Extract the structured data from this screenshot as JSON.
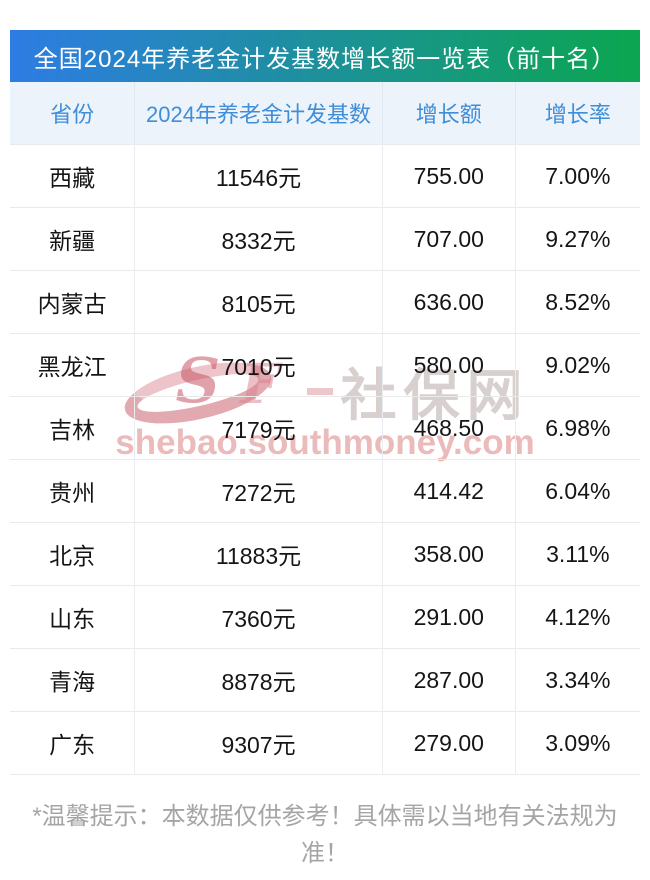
{
  "title": "全国2024年养老金计发基数增长额一览表（前十名）",
  "chart_data": {
    "type": "table",
    "title": "全国2024年养老金计发基数增长额一览表（前十名）",
    "columns": [
      "省份",
      "2024年养老金计发基数",
      "增长额",
      "增长率"
    ],
    "rows": [
      {
        "province": "西藏",
        "base": "11546元",
        "growth": "755.00",
        "rate": "7.00%"
      },
      {
        "province": "新疆",
        "base": "8332元",
        "growth": "707.00",
        "rate": "9.27%"
      },
      {
        "province": "内蒙古",
        "base": "8105元",
        "growth": "636.00",
        "rate": "8.52%"
      },
      {
        "province": "黑龙江",
        "base": "7010元",
        "growth": "580.00",
        "rate": "9.02%"
      },
      {
        "province": "吉林",
        "base": "7179元",
        "growth": "468.50",
        "rate": "6.98%"
      },
      {
        "province": "贵州",
        "base": "7272元",
        "growth": "414.42",
        "rate": "6.04%"
      },
      {
        "province": "北京",
        "base": "11883元",
        "growth": "358.00",
        "rate": "3.11%"
      },
      {
        "province": "山东",
        "base": "7360元",
        "growth": "291.00",
        "rate": "4.12%"
      },
      {
        "province": "青海",
        "base": "8878元",
        "growth": "287.00",
        "rate": "3.34%"
      },
      {
        "province": "广东",
        "base": "9307元",
        "growth": "279.00",
        "rate": "3.09%"
      }
    ]
  },
  "watermark": {
    "logo_letter_s": "S",
    "logo_letter_f": "F",
    "site_name": "社保网",
    "domain": "shebao.southmoney.com"
  },
  "footer_note": "*温馨提示：本数据仅供参考！具体需以当地有关法规为准！",
  "colors": {
    "title_gradient_start": "#2E7CE4",
    "title_gradient_end": "#0BA64F",
    "column_header_bg": "#EDF3FA",
    "column_header_text": "#3E8ED8",
    "watermark_pink": "#D26868",
    "footer_text": "#A5A5A5"
  }
}
